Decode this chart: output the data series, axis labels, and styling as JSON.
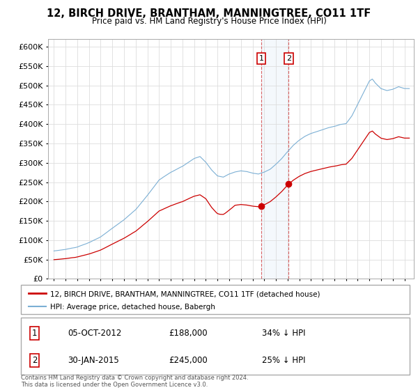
{
  "title": "12, BIRCH DRIVE, BRANTHAM, MANNINGTREE, CO11 1TF",
  "subtitle": "Price paid vs. HM Land Registry's House Price Index (HPI)",
  "property_label": "12, BIRCH DRIVE, BRANTHAM, MANNINGTREE, CO11 1TF (detached house)",
  "hpi_label": "HPI: Average price, detached house, Babergh",
  "footer": "Contains HM Land Registry data © Crown copyright and database right 2024.\nThis data is licensed under the Open Government Licence v3.0.",
  "property_color": "#cc0000",
  "hpi_color": "#7bafd4",
  "transaction1_date": "05-OCT-2012",
  "transaction1_price": 188000,
  "transaction1_pct": "34% ↓ HPI",
  "transaction1_x": 2012.75,
  "transaction1_y": 188000,
  "transaction2_date": "30-JAN-2015",
  "transaction2_price": 245000,
  "transaction2_pct": "25% ↓ HPI",
  "transaction2_x": 2015.08,
  "transaction2_y": 245000,
  "ylim": [
    0,
    620000
  ],
  "yticks": [
    0,
    50000,
    100000,
    150000,
    200000,
    250000,
    300000,
    350000,
    400000,
    450000,
    500000,
    550000,
    600000
  ],
  "xmin": 1994.5,
  "xmax": 2025.8,
  "background_color": "#ffffff",
  "grid_color": "#dddddd"
}
